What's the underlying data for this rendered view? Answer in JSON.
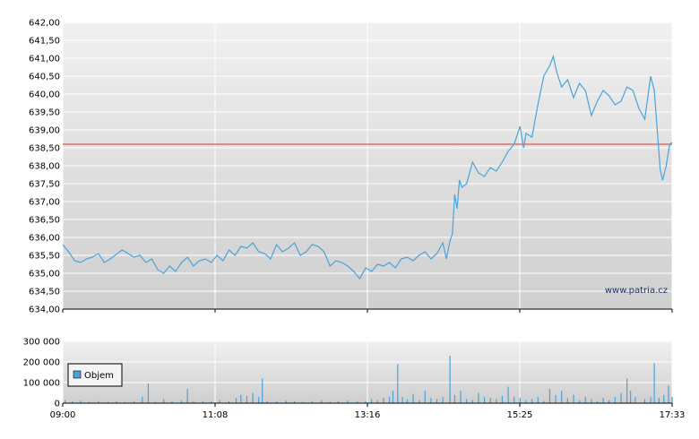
{
  "watermark": "www.patria.cz",
  "colors": {
    "price_line": "#4aa3d8",
    "reference_line": "#d9342b",
    "volume_bar": "#4aa3d8",
    "grid": "#ffffff",
    "panel_top": "#f0f0f0",
    "panel_bottom": "#cfcfcf"
  },
  "chart_data": [
    {
      "type": "line",
      "title": "",
      "xlabel": "",
      "ylabel": "",
      "ylim": [
        634.0,
        642.0
      ],
      "y_ticks": [
        "634,00",
        "634,50",
        "635,00",
        "635,50",
        "636,00",
        "636,50",
        "637,00",
        "637,50",
        "638,00",
        "638,50",
        "639,00",
        "639,50",
        "640,00",
        "640,50",
        "641,00",
        "641,50",
        "642,00"
      ],
      "x_ticks": [
        "09:00",
        "11:08",
        "13:16",
        "15:25",
        "17:33"
      ],
      "x_range_minutes": [
        540,
        1053
      ],
      "reference_line": 638.6,
      "grid": true,
      "series": [
        {
          "values": [
            [
              540,
              635.8
            ],
            [
              545,
              635.6
            ],
            [
              550,
              635.35
            ],
            [
              555,
              635.3
            ],
            [
              560,
              635.4
            ],
            [
              565,
              635.45
            ],
            [
              570,
              635.55
            ],
            [
              575,
              635.3
            ],
            [
              580,
              635.4
            ],
            [
              590,
              635.65
            ],
            [
              600,
              635.45
            ],
            [
              605,
              635.5
            ],
            [
              610,
              635.3
            ],
            [
              615,
              635.4
            ],
            [
              620,
              635.1
            ],
            [
              625,
              635.0
            ],
            [
              630,
              635.2
            ],
            [
              635,
              635.05
            ],
            [
              640,
              635.3
            ],
            [
              645,
              635.45
            ],
            [
              650,
              635.2
            ],
            [
              655,
              635.35
            ],
            [
              660,
              635.4
            ],
            [
              665,
              635.3
            ],
            [
              670,
              635.5
            ],
            [
              675,
              635.35
            ],
            [
              680,
              635.65
            ],
            [
              685,
              635.5
            ],
            [
              690,
              635.75
            ],
            [
              695,
              635.7
            ],
            [
              700,
              635.85
            ],
            [
              705,
              635.6
            ],
            [
              710,
              635.55
            ],
            [
              715,
              635.4
            ],
            [
              720,
              635.8
            ],
            [
              725,
              635.6
            ],
            [
              730,
              635.7
            ],
            [
              735,
              635.85
            ],
            [
              740,
              635.5
            ],
            [
              745,
              635.6
            ],
            [
              750,
              635.8
            ],
            [
              755,
              635.75
            ],
            [
              760,
              635.6
            ],
            [
              765,
              635.2
            ],
            [
              770,
              635.35
            ],
            [
              775,
              635.3
            ],
            [
              780,
              635.2
            ],
            [
              785,
              635.05
            ],
            [
              790,
              634.85
            ],
            [
              795,
              635.15
            ],
            [
              800,
              635.05
            ],
            [
              805,
              635.25
            ],
            [
              810,
              635.2
            ],
            [
              815,
              635.3
            ],
            [
              820,
              635.15
            ],
            [
              825,
              635.4
            ],
            [
              830,
              635.45
            ],
            [
              835,
              635.35
            ],
            [
              840,
              635.5
            ],
            [
              845,
              635.6
            ],
            [
              850,
              635.4
            ],
            [
              855,
              635.55
            ],
            [
              860,
              635.85
            ],
            [
              863,
              635.4
            ],
            [
              866,
              635.9
            ],
            [
              868,
              636.1
            ],
            [
              870,
              637.2
            ],
            [
              872,
              636.8
            ],
            [
              874,
              637.6
            ],
            [
              876,
              637.4
            ],
            [
              880,
              637.5
            ],
            [
              885,
              638.1
            ],
            [
              890,
              637.8
            ],
            [
              895,
              637.7
            ],
            [
              900,
              637.95
            ],
            [
              905,
              637.85
            ],
            [
              910,
              638.1
            ],
            [
              915,
              638.4
            ],
            [
              920,
              638.6
            ],
            [
              925,
              639.1
            ],
            [
              928,
              638.5
            ],
            [
              930,
              638.9
            ],
            [
              935,
              638.8
            ],
            [
              940,
              639.7
            ],
            [
              945,
              640.5
            ],
            [
              950,
              640.8
            ],
            [
              953,
              641.05
            ],
            [
              956,
              640.6
            ],
            [
              960,
              640.2
            ],
            [
              965,
              640.4
            ],
            [
              970,
              639.9
            ],
            [
              975,
              640.3
            ],
            [
              980,
              640.1
            ],
            [
              985,
              639.4
            ],
            [
              990,
              639.8
            ],
            [
              995,
              640.1
            ],
            [
              1000,
              639.95
            ],
            [
              1005,
              639.7
            ],
            [
              1010,
              639.8
            ],
            [
              1015,
              640.2
            ],
            [
              1020,
              640.1
            ],
            [
              1025,
              639.6
            ],
            [
              1030,
              639.3
            ],
            [
              1035,
              640.5
            ],
            [
              1038,
              640.1
            ],
            [
              1040,
              639.2
            ],
            [
              1043,
              637.9
            ],
            [
              1045,
              637.6
            ],
            [
              1048,
              638.0
            ],
            [
              1051,
              638.6
            ],
            [
              1053,
              638.65
            ]
          ]
        }
      ]
    },
    {
      "type": "bar",
      "title": "",
      "xlabel": "",
      "ylabel": "",
      "ylim": [
        0,
        300000
      ],
      "y_ticks": [
        "0",
        "100 000",
        "200 000",
        "300 000"
      ],
      "x_ticks": [
        "09:00",
        "11:08",
        "13:16",
        "15:25",
        "17:33"
      ],
      "x_range_minutes": [
        540,
        1053
      ],
      "legend_label": "Objem",
      "legend_position": "left",
      "grid": true,
      "series": [
        {
          "name": "Objem",
          "values": [
            [
              542,
              15000
            ],
            [
              548,
              8000
            ],
            [
              555,
              12000
            ],
            [
              562,
              6000
            ],
            [
              570,
              10000
            ],
            [
              578,
              7000
            ],
            [
              585,
              9000
            ],
            [
              592,
              5000
            ],
            [
              600,
              8000
            ],
            [
              607,
              30000
            ],
            [
              612,
              95000
            ],
            [
              618,
              6000
            ],
            [
              625,
              20000
            ],
            [
              632,
              9000
            ],
            [
              640,
              12000
            ],
            [
              645,
              70000
            ],
            [
              650,
              8000
            ],
            [
              658,
              10000
            ],
            [
              665,
              7000
            ],
            [
              672,
              15000
            ],
            [
              680,
              9000
            ],
            [
              686,
              25000
            ],
            [
              690,
              40000
            ],
            [
              695,
              35000
            ],
            [
              700,
              50000
            ],
            [
              705,
              30000
            ],
            [
              708,
              120000
            ],
            [
              712,
              10000
            ],
            [
              720,
              8000
            ],
            [
              728,
              12000
            ],
            [
              735,
              9000
            ],
            [
              742,
              6000
            ],
            [
              750,
              10000
            ],
            [
              758,
              14000
            ],
            [
              765,
              7000
            ],
            [
              772,
              9000
            ],
            [
              780,
              12000
            ],
            [
              788,
              8000
            ],
            [
              795,
              10000
            ],
            [
              800,
              20000
            ],
            [
              805,
              15000
            ],
            [
              810,
              25000
            ],
            [
              815,
              30000
            ],
            [
              818,
              60000
            ],
            [
              822,
              190000
            ],
            [
              826,
              30000
            ],
            [
              830,
              20000
            ],
            [
              835,
              45000
            ],
            [
              840,
              15000
            ],
            [
              845,
              60000
            ],
            [
              850,
              25000
            ],
            [
              855,
              20000
            ],
            [
              860,
              30000
            ],
            [
              866,
              230000
            ],
            [
              870,
              40000
            ],
            [
              875,
              60000
            ],
            [
              880,
              20000
            ],
            [
              885,
              15000
            ],
            [
              890,
              50000
            ],
            [
              895,
              30000
            ],
            [
              900,
              25000
            ],
            [
              905,
              20000
            ],
            [
              910,
              35000
            ],
            [
              915,
              80000
            ],
            [
              920,
              30000
            ],
            [
              925,
              25000
            ],
            [
              930,
              15000
            ],
            [
              935,
              20000
            ],
            [
              940,
              30000
            ],
            [
              945,
              10000
            ],
            [
              950,
              70000
            ],
            [
              955,
              40000
            ],
            [
              960,
              60000
            ],
            [
              965,
              25000
            ],
            [
              970,
              40000
            ],
            [
              975,
              15000
            ],
            [
              980,
              30000
            ],
            [
              985,
              20000
            ],
            [
              990,
              10000
            ],
            [
              995,
              25000
            ],
            [
              1000,
              15000
            ],
            [
              1005,
              30000
            ],
            [
              1010,
              50000
            ],
            [
              1015,
              120000
            ],
            [
              1018,
              60000
            ],
            [
              1022,
              30000
            ],
            [
              1030,
              20000
            ],
            [
              1035,
              30000
            ],
            [
              1038,
              195000
            ],
            [
              1042,
              25000
            ],
            [
              1046,
              40000
            ],
            [
              1050,
              85000
            ],
            [
              1053,
              30000
            ]
          ]
        }
      ]
    }
  ]
}
